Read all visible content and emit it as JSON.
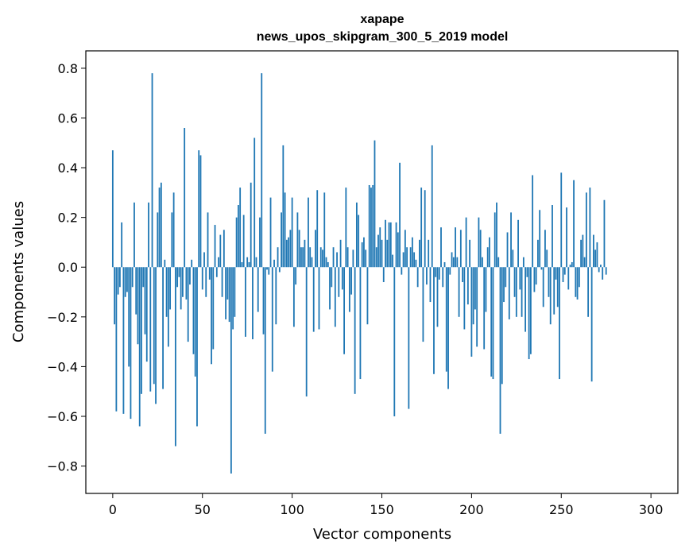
{
  "chart_data": {
    "type": "bar",
    "title": "xapape",
    "subtitle": "news_upos_skipgram_300_5_2019 model",
    "xlabel": "Vector components",
    "ylabel": "Components values",
    "xlim": [
      -15,
      315
    ],
    "ylim": [
      -0.91,
      0.87
    ],
    "xticks": [
      0,
      50,
      100,
      150,
      200,
      250,
      300
    ],
    "yticks": [
      -0.8,
      -0.6,
      -0.4,
      -0.2,
      0.0,
      0.2,
      0.4,
      0.6,
      0.8
    ],
    "ytick_labels": [
      "−0.8",
      "−0.6",
      "−0.4",
      "−0.2",
      "0.0",
      "0.2",
      "0.4",
      "0.6",
      "0.8"
    ],
    "xtick_labels": [
      "0",
      "50",
      "100",
      "150",
      "200",
      "250",
      "300"
    ],
    "grid": false,
    "bar_color": "#1f77b4",
    "values": [
      0.47,
      -0.23,
      -0.58,
      -0.11,
      -0.08,
      0.18,
      -0.59,
      -0.12,
      -0.1,
      -0.4,
      -0.61,
      -0.08,
      0.26,
      -0.19,
      -0.31,
      -0.64,
      -0.51,
      -0.08,
      -0.27,
      -0.38,
      0.26,
      -0.5,
      0.78,
      -0.47,
      -0.55,
      0.22,
      0.32,
      0.34,
      -0.49,
      0.03,
      -0.2,
      -0.32,
      -0.17,
      0.22,
      0.3,
      -0.72,
      -0.08,
      -0.04,
      -0.17,
      -0.12,
      0.56,
      -0.13,
      -0.3,
      -0.07,
      0.03,
      -0.35,
      -0.44,
      -0.64,
      0.47,
      0.45,
      -0.09,
      0.06,
      -0.12,
      0.22,
      -0.05,
      -0.39,
      -0.33,
      0.17,
      -0.04,
      0.04,
      0.13,
      -0.12,
      0.15,
      -0.21,
      -0.13,
      -0.22,
      -0.83,
      -0.25,
      -0.2,
      0.2,
      0.25,
      0.32,
      0.02,
      0.21,
      -0.28,
      0.04,
      0.02,
      0.34,
      -0.29,
      0.52,
      0.04,
      -0.18,
      0.2,
      0.78,
      -0.27,
      -0.67,
      -0.01,
      -0.03,
      0.28,
      -0.42,
      0.03,
      -0.23,
      0.08,
      -0.02,
      0.22,
      0.49,
      0.3,
      0.11,
      0.12,
      0.15,
      0.28,
      -0.24,
      -0.07,
      0.22,
      0.15,
      0.08,
      0.08,
      0.11,
      -0.52,
      0.28,
      0.08,
      0.04,
      -0.26,
      0.15,
      0.31,
      -0.25,
      0.08,
      0.07,
      0.3,
      0.04,
      0.02,
      -0.17,
      -0.08,
      0.08,
      -0.24,
      0.06,
      -0.12,
      0.11,
      -0.09,
      -0.35,
      0.32,
      0.08,
      -0.18,
      -0.11,
      0.07,
      -0.51,
      0.26,
      0.21,
      -0.45,
      0.1,
      0.12,
      0.07,
      -0.23,
      0.33,
      0.32,
      0.33,
      0.51,
      0.08,
      0.13,
      0.16,
      0.11,
      -0.06,
      0.19,
      0.11,
      0.18,
      0.18,
      0.05,
      -0.6,
      0.18,
      0.14,
      0.42,
      -0.03,
      0.06,
      0.15,
      0.08,
      -0.57,
      0.08,
      0.12,
      0.06,
      0.03,
      -0.08,
      0.11,
      0.32,
      -0.3,
      0.31,
      -0.07,
      0.11,
      -0.14,
      0.49,
      -0.43,
      -0.04,
      -0.24,
      -0.05,
      0.16,
      -0.08,
      0.02,
      -0.42,
      -0.49,
      -0.03,
      0.06,
      0.04,
      0.16,
      0.04,
      -0.2,
      0.15,
      -0.06,
      -0.25,
      0.2,
      -0.15,
      0.11,
      -0.36,
      -0.23,
      -0.17,
      -0.32,
      0.2,
      0.15,
      0.04,
      -0.33,
      -0.18,
      0.08,
      0.12,
      -0.44,
      -0.45,
      0.22,
      0.26,
      0.04,
      -0.67,
      -0.47,
      -0.14,
      -0.08,
      0.14,
      -0.21,
      0.22,
      0.07,
      -0.12,
      -0.2,
      0.19,
      -0.09,
      -0.2,
      0.04,
      -0.26,
      -0.04,
      -0.37,
      -0.35,
      0.37,
      -0.1,
      -0.07,
      0.11,
      0.23,
      -0.01,
      -0.16,
      0.15,
      0.07,
      -0.12,
      -0.23,
      0.25,
      -0.19,
      -0.05,
      -0.16,
      -0.45,
      0.38,
      -0.06,
      -0.03,
      0.24,
      -0.09,
      0.01,
      0.02,
      0.35,
      -0.12,
      -0.13,
      -0.08,
      0.11,
      0.13,
      0.04,
      0.3,
      -0.2,
      0.32,
      -0.46,
      0.13,
      0.07,
      0.1,
      -0.02,
      0.01,
      -0.05,
      0.27,
      -0.03
    ]
  }
}
